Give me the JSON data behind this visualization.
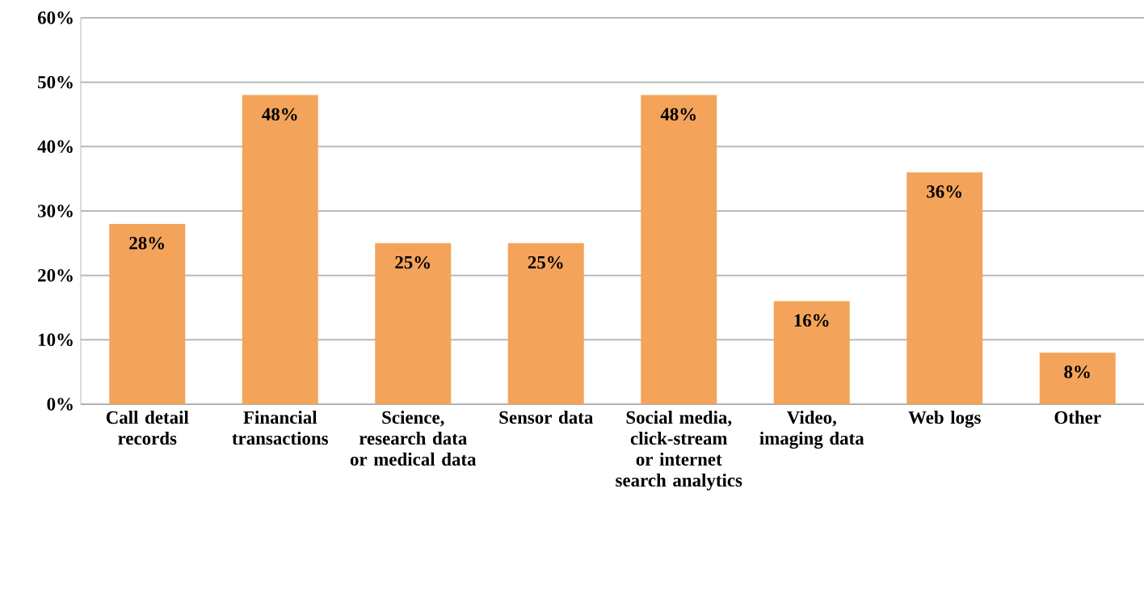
{
  "chart_data": {
    "type": "bar",
    "categories": [
      "Call detail records",
      "Financial transactions",
      "Science, research data or medical data",
      "Sensor data",
      "Social media, click-stream or internet search analytics",
      "Video, imaging data",
      "Web logs",
      "Other"
    ],
    "values": [
      28,
      48,
      25,
      25,
      48,
      16,
      36,
      8
    ],
    "value_labels": [
      "28%",
      "48%",
      "25%",
      "25%",
      "48%",
      "16%",
      "36%",
      "8%"
    ],
    "color": "#f3a45a",
    "ylim": [
      0,
      60
    ],
    "yticks": [
      {
        "value": 0,
        "label": "0%"
      },
      {
        "value": 10,
        "label": "10%"
      },
      {
        "value": 20,
        "label": "20%"
      },
      {
        "value": 30,
        "label": "30%"
      },
      {
        "value": 40,
        "label": "40%"
      },
      {
        "value": 50,
        "label": "50%"
      },
      {
        "value": 60,
        "label": "60%"
      }
    ],
    "grid": "y"
  }
}
